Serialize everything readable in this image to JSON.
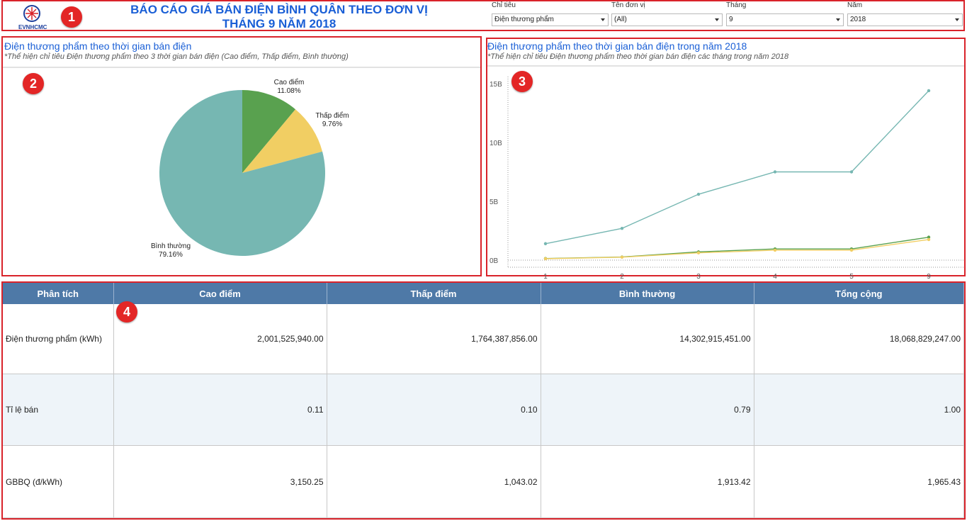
{
  "header": {
    "logo_text": "EVNHCMC",
    "title_line1": "BÁO CÁO GIÁ BÁN ĐIỆN BÌNH QUÂN THEO ĐƠN VỊ",
    "title_line2": "THÁNG 9 NĂM 2018",
    "filters": [
      {
        "label": "Chỉ tiêu",
        "value": "Điện thương phẩm"
      },
      {
        "label": "Tên đơn vị",
        "value": "(All)"
      },
      {
        "label": "Tháng",
        "value": "9"
      },
      {
        "label": "Năm",
        "value": "2018"
      }
    ]
  },
  "badges": [
    "1",
    "2",
    "3",
    "4"
  ],
  "pie_section": {
    "title": "Điện thương phẩm theo thời gian bán điện",
    "subtitle": "*Thể hiện chỉ tiêu Điện thương phẩm theo 3 thời gian bán điện (Cao điểm, Thấp điểm, Bình thường)"
  },
  "line_section": {
    "title": "Điện thương phẩm theo thời gian bán điện trong năm 2018",
    "subtitle": "*Thể hiện chỉ tiêu Điện thương phẩm theo thời gian bán điện các tháng trong năm 2018"
  },
  "colors": {
    "accent": "#1a5fd6",
    "border": "#d9232a",
    "binh_thuong": "#76b7b2",
    "cao_diem": "#59a14f",
    "thap_diem": "#f1ce63",
    "header_bg": "#4e79a7"
  },
  "chart_data": [
    {
      "type": "pie",
      "slices": [
        {
          "label": "Cao điểm",
          "pct_label": "11.08%",
          "value": 11.08,
          "color": "#59a14f"
        },
        {
          "label": "Thấp điểm",
          "pct_label": "9.76%",
          "value": 9.76,
          "color": "#f1ce63"
        },
        {
          "label": "Bình thường",
          "pct_label": "79.16%",
          "value": 79.16,
          "color": "#76b7b2"
        }
      ]
    },
    {
      "type": "line",
      "categories": [
        "1",
        "2",
        "3",
        "4",
        "5",
        "9"
      ],
      "y_ticks": [
        "0B",
        "5B",
        "10B",
        "15B"
      ],
      "ylim": [
        0,
        15
      ],
      "series": [
        {
          "color": "#76b7b2",
          "values": [
            1.4,
            2.7,
            5.6,
            7.5,
            7.5,
            14.4
          ]
        },
        {
          "color": "#59a14f",
          "values": [
            0.14,
            0.27,
            0.7,
            0.95,
            0.95,
            1.95
          ]
        },
        {
          "color": "#f1ce63",
          "values": [
            0.12,
            0.25,
            0.62,
            0.85,
            0.85,
            1.75
          ]
        }
      ]
    }
  ],
  "table": {
    "headers": [
      "Phân tích",
      "Cao điểm",
      "Thấp điểm",
      "Bình thường",
      "Tổng cộng"
    ],
    "rows": [
      [
        "Điện thương phẩm (kWh)",
        "2,001,525,940.00",
        "1,764,387,856.00",
        "14,302,915,451.00",
        "18,068,829,247.00"
      ],
      [
        "Tỉ lệ bán",
        "0.11",
        "0.10",
        "0.79",
        "1.00"
      ],
      [
        "GBBQ (đ/kWh)",
        "3,150.25",
        "1,043.02",
        "1,913.42",
        "1,965.43"
      ]
    ]
  }
}
